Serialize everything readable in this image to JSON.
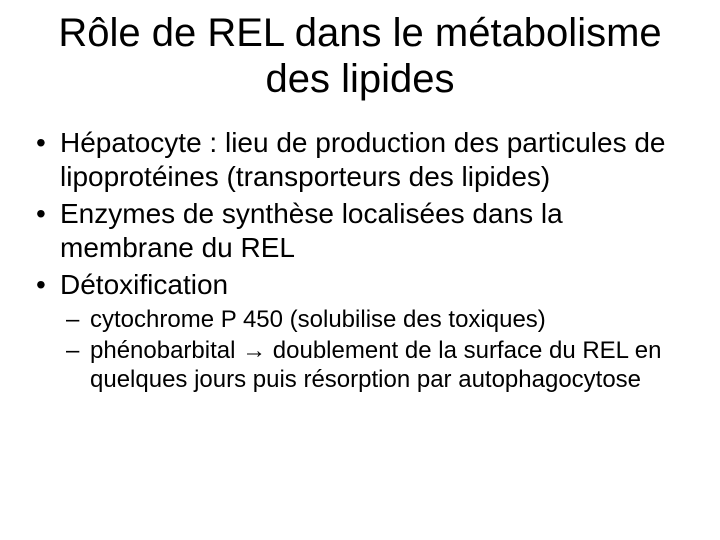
{
  "slide": {
    "title": "Rôle de REL dans le métabolisme des lipides",
    "bullets": [
      {
        "text": "Hépatocyte : lieu de production des particules de lipoprotéines (transporteurs des lipides)"
      },
      {
        "text": "Enzymes de synthèse localisées dans la membrane du REL"
      },
      {
        "text": "Détoxification",
        "sub": [
          {
            "text": "cytochrome P 450 (solubilise des toxiques)"
          },
          {
            "text": "phénobarbital → doublement de la surface du REL en quelques jours puis résorption par autophagocytose"
          }
        ]
      }
    ]
  },
  "style": {
    "background_color": "#ffffff",
    "text_color": "#000000",
    "title_fontsize": 40,
    "body_fontsize": 28,
    "sub_fontsize": 24,
    "font_family": "Arial"
  }
}
